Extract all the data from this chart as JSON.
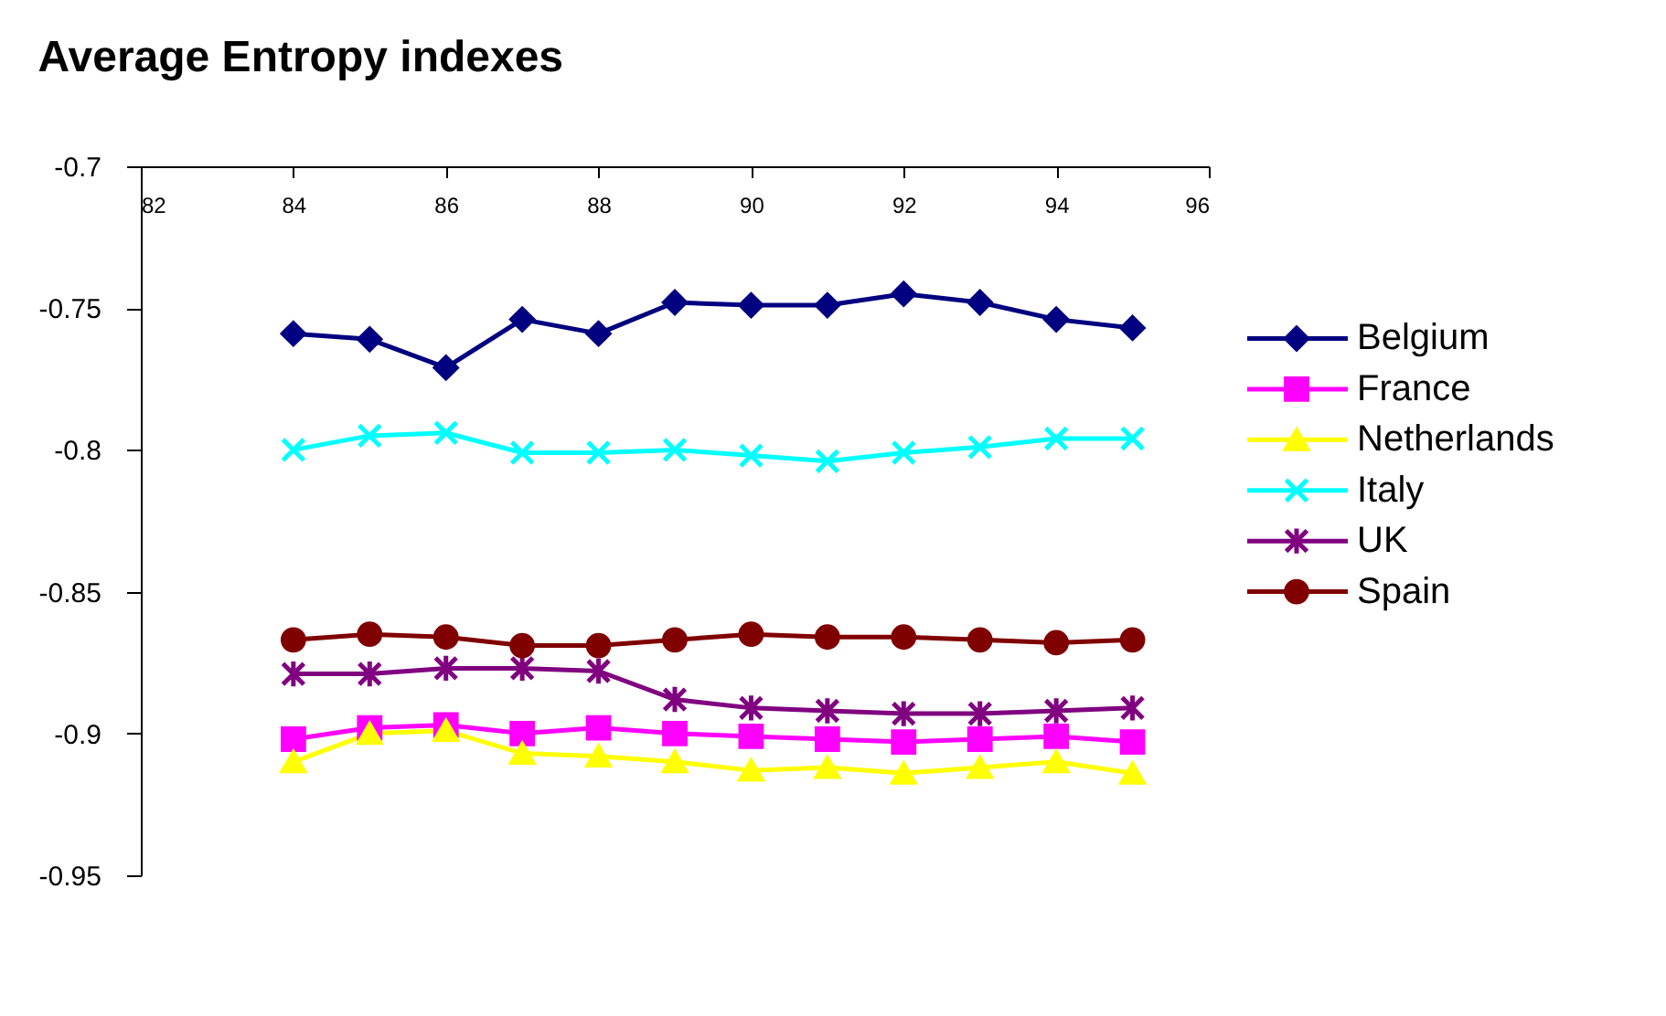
{
  "chart_data": {
    "type": "line",
    "title": "Average Entropy indexes",
    "x": [
      84,
      85,
      86,
      87,
      88,
      89,
      90,
      91,
      92,
      93,
      94,
      95
    ],
    "series": [
      {
        "name": "Belgium",
        "color": "#000080",
        "marker": "diamond",
        "values": [
          -0.759,
          -0.761,
          -0.771,
          -0.754,
          -0.759,
          -0.748,
          -0.749,
          -0.749,
          -0.745,
          -0.748,
          -0.754,
          -0.757
        ]
      },
      {
        "name": "France",
        "color": "#ff00ff",
        "marker": "square",
        "values": [
          -0.902,
          -0.898,
          -0.897,
          -0.9,
          -0.898,
          -0.9,
          -0.901,
          -0.902,
          -0.903,
          -0.902,
          -0.901,
          -0.903
        ]
      },
      {
        "name": "Netherlands",
        "color": "#ffff00",
        "marker": "triangle",
        "values": [
          -0.91,
          -0.9,
          -0.899,
          -0.907,
          -0.908,
          -0.91,
          -0.913,
          -0.912,
          -0.914,
          -0.912,
          -0.91,
          -0.914
        ]
      },
      {
        "name": "Italy",
        "color": "#00ffff",
        "marker": "cross",
        "values": [
          -0.8,
          -0.795,
          -0.794,
          -0.801,
          -0.801,
          -0.8,
          -0.802,
          -0.804,
          -0.801,
          -0.799,
          -0.796,
          -0.796
        ]
      },
      {
        "name": "UK",
        "color": "#800080",
        "marker": "cross",
        "values": [
          -0.879,
          -0.879,
          -0.877,
          -0.877,
          -0.878,
          -0.888,
          -0.891,
          -0.892,
          -0.893,
          -0.893,
          -0.892,
          -0.891
        ]
      },
      {
        "name": "Spain",
        "color": "#800000",
        "marker": "circle",
        "values": [
          -0.867,
          -0.865,
          -0.866,
          -0.869,
          -0.869,
          -0.867,
          -0.865,
          -0.866,
          -0.866,
          -0.867,
          -0.868,
          -0.867
        ]
      }
    ],
    "xlim": [
      82,
      96
    ],
    "xticks": [
      82,
      84,
      86,
      88,
      90,
      92,
      94,
      96
    ],
    "ylim": [
      -0.95,
      -0.7
    ],
    "yticks": [
      -0.7,
      -0.75,
      -0.8,
      -0.85,
      -0.9,
      -0.95
    ],
    "grid": false,
    "legend": "right"
  }
}
